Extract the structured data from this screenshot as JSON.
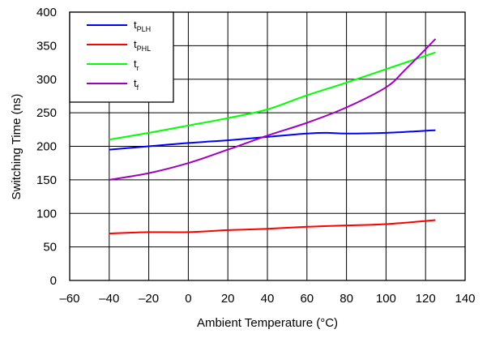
{
  "chart_data": {
    "type": "line",
    "xlabel": "Ambient Temperature (°C)",
    "ylabel": "Switching Time (ns)",
    "xlim": [
      -60,
      140
    ],
    "ylim": [
      0,
      400
    ],
    "x_ticks": [
      -60,
      -40,
      -20,
      0,
      20,
      40,
      60,
      80,
      100,
      120,
      140
    ],
    "y_ticks": [
      0,
      50,
      100,
      150,
      200,
      250,
      300,
      350,
      400
    ],
    "x_tick_labels": [
      "–60",
      "–40",
      "–20",
      "0",
      "20",
      "40",
      "60",
      "80",
      "100",
      "120",
      "140"
    ],
    "y_tick_labels": [
      "0",
      "50",
      "100",
      "150",
      "200",
      "250",
      "300",
      "350",
      "400"
    ],
    "grid": true,
    "legend_position": "top-left",
    "series": [
      {
        "name": "t",
        "subscript": "PLH",
        "color": "#0000ff",
        "x": [
          -40,
          -20,
          0,
          20,
          40,
          60,
          70,
          80,
          100,
          125
        ],
        "y": [
          195,
          200,
          205,
          209,
          214,
          219,
          220,
          219,
          220,
          224
        ]
      },
      {
        "name": "t",
        "subscript": "PHL",
        "color": "#ff0000",
        "x": [
          -40,
          -20,
          0,
          20,
          40,
          60,
          80,
          100,
          125
        ],
        "y": [
          70,
          72,
          72,
          75,
          77,
          80,
          82,
          84,
          90
        ]
      },
      {
        "name": "t",
        "subscript": "r",
        "color": "#00ff00",
        "x": [
          -40,
          -20,
          0,
          20,
          40,
          60,
          80,
          100,
          125
        ],
        "y": [
          210,
          220,
          231,
          242,
          255,
          276,
          295,
          315,
          340
        ]
      },
      {
        "name": "t",
        "subscript": "f",
        "color": "#a000c0",
        "x": [
          -40,
          -20,
          0,
          20,
          40,
          60,
          80,
          100,
          110,
          125
        ],
        "y": [
          150,
          160,
          175,
          195,
          216,
          235,
          258,
          288,
          315,
          360
        ]
      }
    ]
  }
}
